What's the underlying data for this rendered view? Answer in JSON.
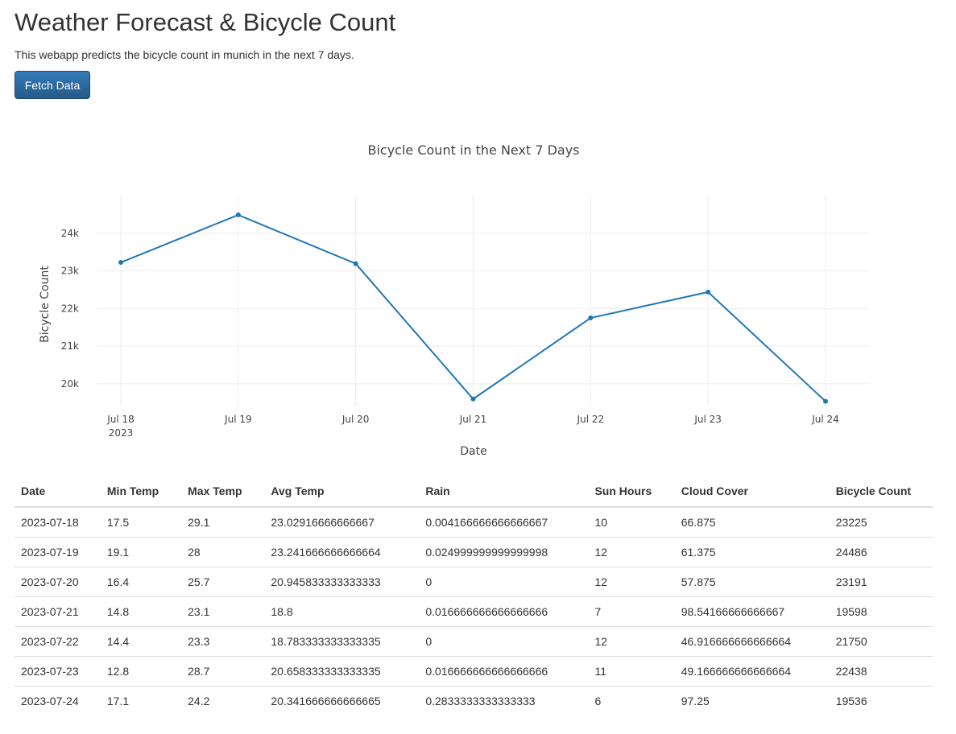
{
  "header": {
    "title": "Weather Forecast & Bicycle Count",
    "subtitle": "This webapp predicts the bicycle count in munich in the next 7 days.",
    "fetch_label": "Fetch Data"
  },
  "colors": {
    "line": "#1f77b4",
    "button": "#265a88",
    "grid": "#eeeeee"
  },
  "chart_data": {
    "type": "line",
    "title": "Bicycle Count in the Next 7 Days",
    "xlabel": "Date",
    "ylabel": "Bicycle Count",
    "x": [
      "2023-07-18",
      "2023-07-19",
      "2023-07-20",
      "2023-07-21",
      "2023-07-22",
      "2023-07-23",
      "2023-07-24"
    ],
    "x_tick_labels": [
      "Jul 18",
      "Jul 19",
      "Jul 20",
      "Jul 21",
      "Jul 22",
      "Jul 23",
      "Jul 24"
    ],
    "x_tick_year": "2023",
    "y_ticks": [
      20000,
      21000,
      22000,
      23000,
      24000
    ],
    "y_tick_labels": [
      "20k",
      "21k",
      "22k",
      "23k",
      "24k"
    ],
    "ylim": [
      19400,
      25000
    ],
    "grid": true,
    "series": [
      {
        "values": [
          23225,
          24486,
          23191,
          19598,
          21750,
          22438,
          19536
        ]
      }
    ]
  },
  "table": {
    "headers": [
      "Date",
      "Min Temp",
      "Max Temp",
      "Avg Temp",
      "Rain",
      "Sun Hours",
      "Cloud Cover",
      "Bicycle Count"
    ],
    "rows": [
      [
        "2023-07-18",
        "17.5",
        "29.1",
        "23.02916666666667",
        "0.004166666666666667",
        "10",
        "66.875",
        "23225"
      ],
      [
        "2023-07-19",
        "19.1",
        "28",
        "23.241666666666664",
        "0.024999999999999998",
        "12",
        "61.375",
        "24486"
      ],
      [
        "2023-07-20",
        "16.4",
        "25.7",
        "20.945833333333333",
        "0",
        "12",
        "57.875",
        "23191"
      ],
      [
        "2023-07-21",
        "14.8",
        "23.1",
        "18.8",
        "0.016666666666666666",
        "7",
        "98.54166666666667",
        "19598"
      ],
      [
        "2023-07-22",
        "14.4",
        "23.3",
        "18.783333333333335",
        "0",
        "12",
        "46.916666666666664",
        "21750"
      ],
      [
        "2023-07-23",
        "12.8",
        "28.7",
        "20.658333333333335",
        "0.016666666666666666",
        "11",
        "49.166666666666664",
        "22438"
      ],
      [
        "2023-07-24",
        "17.1",
        "24.2",
        "20.341666666666665",
        "0.2833333333333333",
        "6",
        "97.25",
        "19536"
      ]
    ]
  }
}
